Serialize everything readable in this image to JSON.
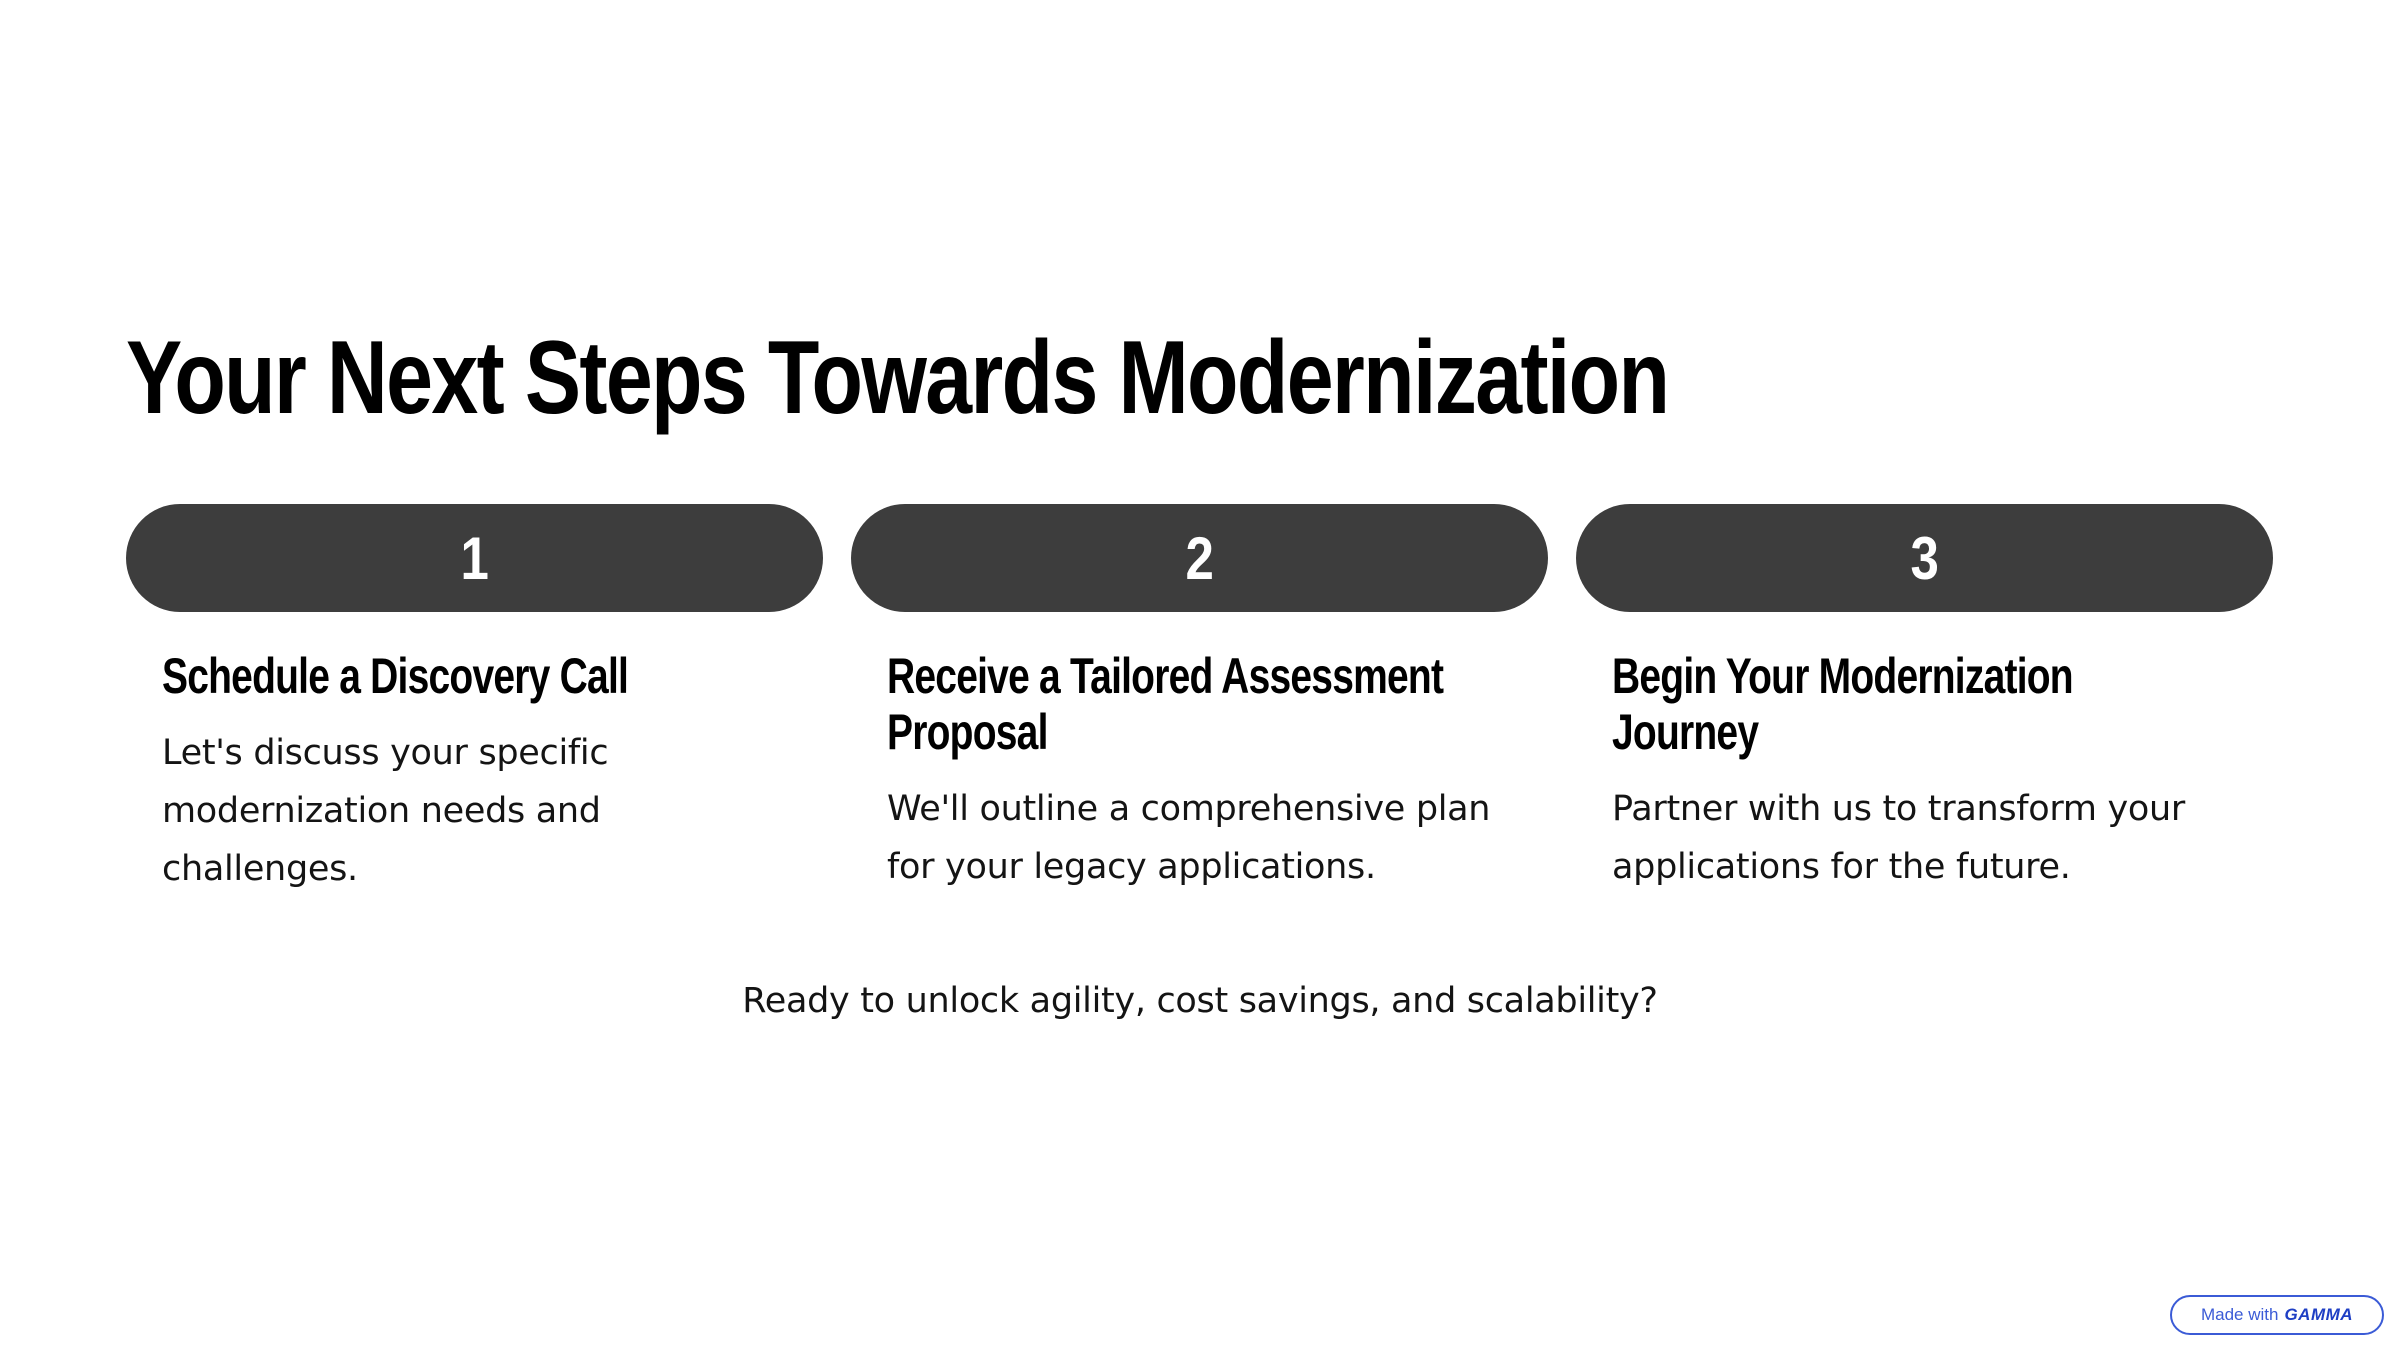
{
  "slide": {
    "title": "Your Next Steps Towards Modernization",
    "steps": [
      {
        "number": "1",
        "heading": "Schedule a Discovery Call",
        "text": "Let's discuss your specific modernization needs and challenges."
      },
      {
        "number": "2",
        "heading": "Receive a Tailored Assessment Proposal",
        "text": "We'll outline a comprehensive plan for your legacy applications."
      },
      {
        "number": "3",
        "heading": "Begin Your Modernization Journey",
        "text": "Partner with us to transform your applications for the future."
      }
    ],
    "cta": "Ready to unlock agility, cost savings, and scalability?"
  },
  "badge": {
    "prefix": "Made with",
    "brand": "GAMMA"
  },
  "colors": {
    "pill": "#3d3d3d",
    "text": "#000000",
    "badge_accent": "#3b5bd6"
  }
}
